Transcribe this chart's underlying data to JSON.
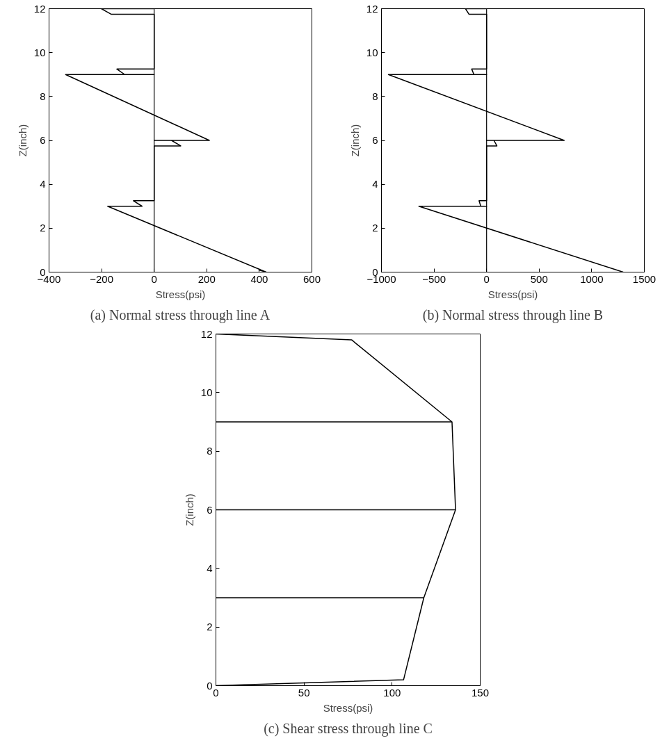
{
  "chart_data": [
    {
      "type": "line",
      "title": "(a) Normal stress through line A",
      "xlabel": "Stress(psi)",
      "ylabel": "Z(inch)",
      "xlim": [
        -400,
        600
      ],
      "ylim": [
        0,
        12
      ],
      "xticks": [
        -400,
        -200,
        0,
        200,
        400,
        600
      ],
      "yticks": [
        0,
        2,
        4,
        6,
        8,
        10,
        12
      ],
      "grid": false,
      "marker": "none",
      "line_style": "solid",
      "ref_lines": [
        {
          "axis": "x",
          "value": 0,
          "label": null,
          "color": "#000000"
        }
      ],
      "series": [
        {
          "color": "#000000",
          "x": [
            397,
            426,
            -177,
            -46,
            -79,
            0,
            0,
            101,
            66,
            0,
            210,
            -337,
            0,
            -112,
            -142,
            0,
            0,
            -164,
            -201,
            0
          ],
          "values": [
            0.1,
            0,
            3,
            3,
            3.25,
            3.25,
            5.75,
            5.75,
            6,
            6,
            6,
            9,
            9,
            9,
            9.25,
            9.25,
            11.75,
            11.75,
            12,
            12
          ]
        }
      ]
    },
    {
      "type": "line",
      "title": "(b) Normal stress through line B",
      "xlabel": "Stress(psi)",
      "ylabel": "Z(inch)",
      "xlim": [
        -1000,
        1500
      ],
      "ylim": [
        0,
        12
      ],
      "xticks": [
        -1000,
        -500,
        0,
        500,
        1000,
        1500
      ],
      "yticks": [
        0,
        2,
        4,
        6,
        8,
        10,
        12
      ],
      "grid": false,
      "marker": "none",
      "line_style": "solid",
      "ref_lines": [
        {
          "axis": "x",
          "value": 0,
          "label": null,
          "color": "#000000"
        }
      ],
      "series": [
        {
          "color": "#000000",
          "x": [
            1299,
            -644,
            0,
            -55,
            -72,
            0,
            0,
            98,
            70,
            0,
            738,
            -934,
            0,
            -120,
            -142,
            0,
            0,
            -168,
            -201,
            0
          ],
          "values": [
            0,
            3,
            3,
            3,
            3.25,
            3.25,
            5.75,
            5.75,
            6,
            6,
            6,
            9,
            9,
            9,
            9.25,
            9.25,
            11.75,
            11.75,
            12,
            12
          ]
        }
      ]
    },
    {
      "type": "line",
      "title": "(c) Shear stress through line C",
      "xlabel": "Stress(psi)",
      "ylabel": "Z(inch)",
      "xlim": [
        0,
        150
      ],
      "ylim": [
        0,
        12
      ],
      "xticks": [
        0,
        50,
        100,
        150
      ],
      "yticks": [
        0,
        2,
        4,
        6,
        8,
        10,
        12
      ],
      "grid": false,
      "marker": "none",
      "line_style": "solid",
      "series": [
        {
          "color": "#000000",
          "x": [
            0,
            106.5,
            118,
            0,
            118,
            136,
            0,
            136,
            134,
            0,
            134,
            77,
            0
          ],
          "values": [
            0,
            0.2,
            3,
            3,
            3,
            6,
            6,
            6,
            9,
            9,
            9,
            11.8,
            12
          ]
        }
      ]
    }
  ]
}
